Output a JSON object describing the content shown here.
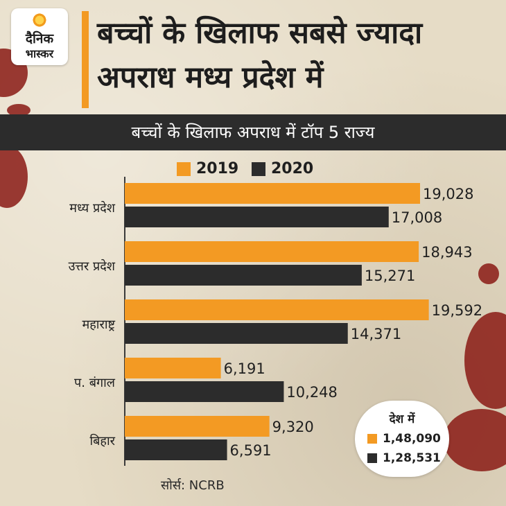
{
  "logo": {
    "line1": "दैनिक",
    "line2": "भास्कर"
  },
  "title": "बच्चों के खिलाफ सबसे ज्यादा अपराध मध्य प्रदेश में",
  "colors": {
    "accent": "#f39a23",
    "dark": "#2c2c2c",
    "blood": "#8a1a14"
  },
  "chart_data": {
    "type": "bar",
    "orientation": "horizontal",
    "title": "बच्चों के खिलाफ अपराध में टॉप 5 राज्य",
    "categories": [
      "मध्य प्रदेश",
      "उत्तर प्रदेश",
      "महाराष्ट्र",
      "प. बंगाल",
      "बिहार"
    ],
    "series": [
      {
        "name": "2019",
        "color": "#f39a23",
        "values": [
          19028,
          18943,
          19592,
          6191,
          9320
        ],
        "labels": [
          "19,028",
          "18,943",
          "19,592",
          "6,191",
          "9,320"
        ]
      },
      {
        "name": "2020",
        "color": "#2c2c2c",
        "values": [
          17008,
          15271,
          14371,
          10248,
          6591
        ],
        "labels": [
          "17,008",
          "15,271",
          "14,371",
          "10,248",
          "6,591"
        ]
      }
    ],
    "xlim": [
      0,
      20000
    ],
    "grid": false,
    "legend_position": "top"
  },
  "country_total": {
    "title": "देश में",
    "items": [
      {
        "value": "1,48,090",
        "color": "#f39a23"
      },
      {
        "value": "1,28,531",
        "color": "#2c2c2c"
      }
    ]
  },
  "source": "सोर्स: NCRB"
}
